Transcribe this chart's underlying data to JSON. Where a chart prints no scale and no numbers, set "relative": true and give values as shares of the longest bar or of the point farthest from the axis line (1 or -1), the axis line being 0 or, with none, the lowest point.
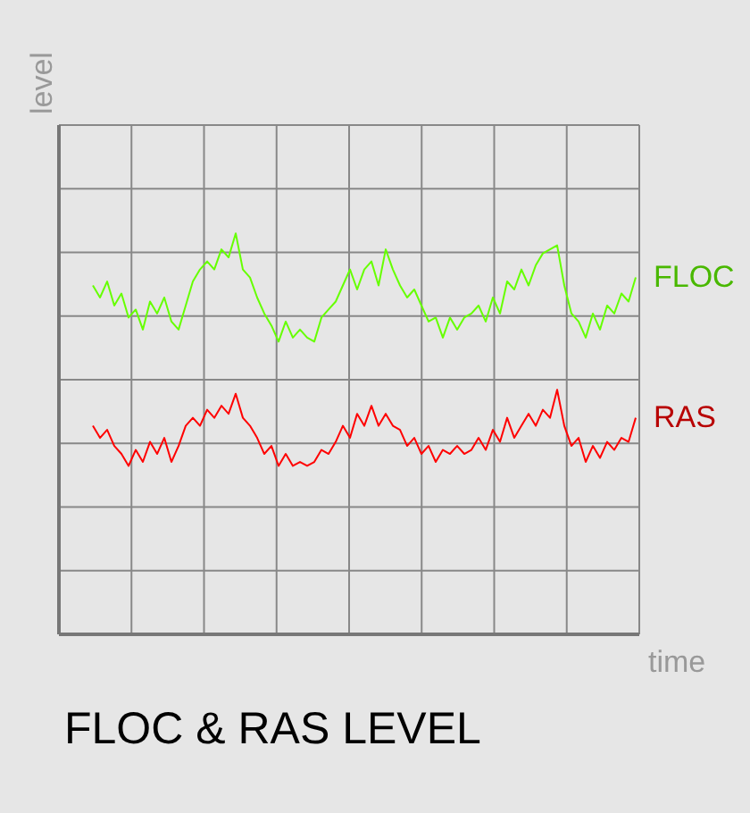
{
  "chart_data": {
    "type": "line",
    "title": "FLOC & RAS LEVEL",
    "xlabel": "time",
    "ylabel": "level",
    "relative": true,
    "grid": true,
    "marker": "none",
    "categories": [
      null,
      null,
      null,
      null,
      null,
      null,
      null,
      null,
      null,
      null,
      null,
      null,
      null,
      null,
      null,
      null,
      null,
      null,
      null,
      null,
      null,
      null,
      null,
      null,
      null,
      null,
      null,
      null,
      null,
      null,
      null,
      null,
      null,
      null,
      null,
      null,
      null,
      null,
      null,
      null,
      null,
      null,
      null,
      null,
      null,
      null,
      null,
      null,
      null,
      null,
      null,
      null,
      null,
      null,
      null,
      null,
      null,
      null,
      null,
      null,
      null,
      null,
      null,
      null,
      null,
      null,
      null,
      null,
      null,
      null,
      null,
      null,
      null,
      null,
      null,
      null,
      null
    ],
    "series": [
      {
        "name": "FLOC",
        "color": "#66ff00",
        "values": [
          0.87,
          0.84,
          0.88,
          0.82,
          0.85,
          0.79,
          0.81,
          0.76,
          0.83,
          0.8,
          0.84,
          0.78,
          0.76,
          0.82,
          0.88,
          0.91,
          0.93,
          0.91,
          0.96,
          0.94,
          1.0,
          0.91,
          0.89,
          0.84,
          0.8,
          0.77,
          0.73,
          0.78,
          0.74,
          0.76,
          0.74,
          0.73,
          0.79,
          0.81,
          0.83,
          0.87,
          0.91,
          0.86,
          0.91,
          0.93,
          0.87,
          0.96,
          0.91,
          0.87,
          0.84,
          0.86,
          0.82,
          0.78,
          0.79,
          0.74,
          0.79,
          0.76,
          0.79,
          0.8,
          0.82,
          0.78,
          0.84,
          0.8,
          0.88,
          0.86,
          0.91,
          0.87,
          0.92,
          0.95,
          0.96,
          0.97,
          0.87,
          0.8,
          0.78,
          0.74,
          0.8,
          0.76,
          0.82,
          0.8,
          0.85,
          0.83,
          0.89
        ]
      },
      {
        "name": "RAS",
        "color": "#ff0000",
        "values": [
          0.52,
          0.49,
          0.51,
          0.47,
          0.45,
          0.42,
          0.46,
          0.43,
          0.48,
          0.45,
          0.49,
          0.43,
          0.47,
          0.52,
          0.54,
          0.52,
          0.56,
          0.54,
          0.57,
          0.55,
          0.6,
          0.54,
          0.52,
          0.49,
          0.45,
          0.47,
          0.42,
          0.45,
          0.42,
          0.43,
          0.42,
          0.43,
          0.46,
          0.45,
          0.48,
          0.52,
          0.49,
          0.55,
          0.52,
          0.57,
          0.52,
          0.55,
          0.52,
          0.51,
          0.47,
          0.49,
          0.45,
          0.47,
          0.43,
          0.46,
          0.45,
          0.47,
          0.45,
          0.46,
          0.49,
          0.46,
          0.51,
          0.48,
          0.54,
          0.49,
          0.52,
          0.55,
          0.52,
          0.56,
          0.54,
          0.61,
          0.52,
          0.47,
          0.49,
          0.43,
          0.47,
          0.44,
          0.48,
          0.46,
          0.49,
          0.48,
          0.54
        ]
      }
    ]
  }
}
